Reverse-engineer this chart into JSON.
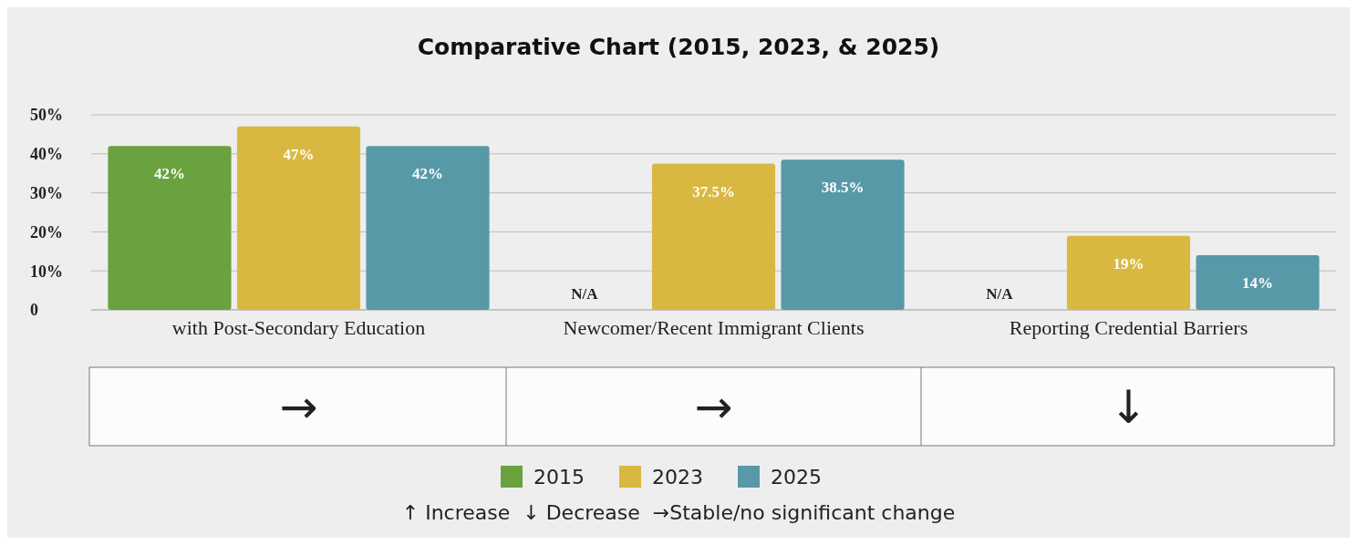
{
  "chart_data": {
    "type": "bar",
    "title": "Comparative Chart (2015, 2023, & 2025)",
    "categories": [
      "with Post-Secondary Education",
      "Newcomer/Recent Immigrant Clients",
      "Reporting Credential Barriers"
    ],
    "series": [
      {
        "name": "2015",
        "color": "#6aa23f",
        "values": [
          42,
          null,
          null
        ],
        "value_labels": [
          "42%",
          "N/A",
          "N/A"
        ]
      },
      {
        "name": "2023",
        "color": "#d9b841",
        "values": [
          47,
          37.5,
          19
        ],
        "value_labels": [
          "47%",
          "37.5%",
          "19%"
        ]
      },
      {
        "name": "2025",
        "color": "#5899a8",
        "values": [
          42,
          38.5,
          14
        ],
        "value_labels": [
          "42%",
          "38.5%",
          "14%"
        ]
      }
    ],
    "ylim": [
      0,
      50
    ],
    "yticks": [
      {
        "value": 0,
        "label": "0"
      },
      {
        "value": 10,
        "label": "10%"
      },
      {
        "value": 20,
        "label": "20%"
      },
      {
        "value": 30,
        "label": "30%"
      },
      {
        "value": 40,
        "label": "40%"
      },
      {
        "value": 50,
        "label": "50%"
      }
    ],
    "grid": "y",
    "legend": "bottom",
    "annotations": [
      "→",
      "→",
      "↓",
      "↑ Increase  ↓ Decrease  →Stable/no significant change"
    ]
  }
}
